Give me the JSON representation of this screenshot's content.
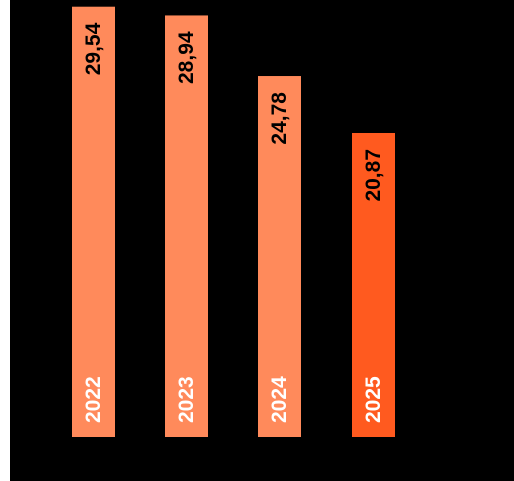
{
  "chart_data": {
    "type": "bar",
    "categories": [
      "2022",
      "2023",
      "2024",
      "2025"
    ],
    "values": [
      29.54,
      28.94,
      24.78,
      20.87
    ],
    "value_labels": [
      "29,54",
      "28,94",
      "24,78",
      "20,87"
    ],
    "ylim": [
      0,
      30
    ],
    "orientation": "vertical",
    "label_rotation": "vertical, reading bottom-to-top",
    "colors": {
      "background": "#000000",
      "bar": "#ff8a5b",
      "highlight_bar": "#ff5a1f",
      "value_text": "#000000",
      "category_text": "#ffffff"
    },
    "highlight_index": 3,
    "grid": false,
    "legend": "none"
  }
}
